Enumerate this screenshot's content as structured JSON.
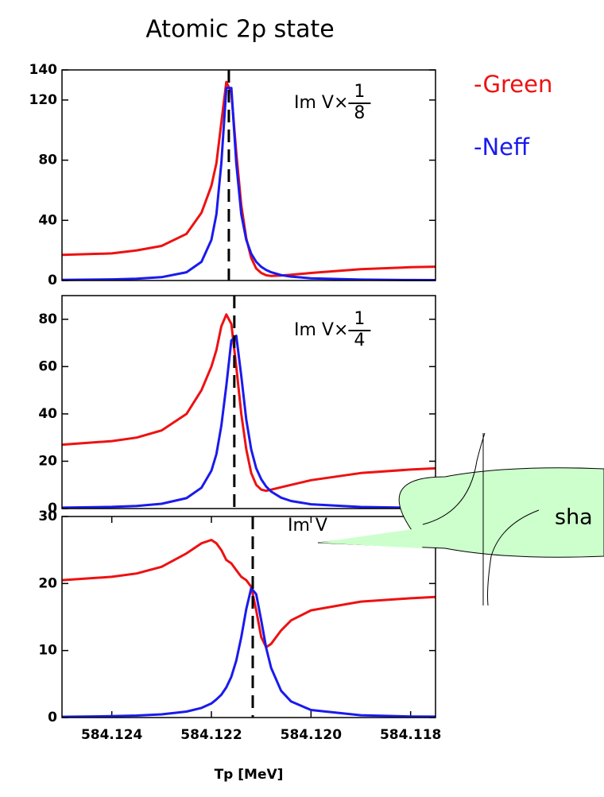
{
  "title": "Atomic 2p state",
  "callout": "sha",
  "chart_data": [
    {
      "type": "line",
      "annotation": "Im V×",
      "annotation_fraction": [
        "1",
        "8"
      ],
      "x": [
        584.125,
        584.124,
        584.1235,
        584.123,
        584.1225,
        584.1222,
        584.122,
        584.1219,
        584.1218,
        584.1217,
        584.1216,
        584.1215,
        584.1214,
        584.1213,
        584.1212,
        584.1211,
        584.121,
        584.1209,
        584.1208,
        584.1206,
        584.1204,
        584.12,
        584.119,
        584.118,
        584.1175
      ],
      "series": [
        {
          "name": "-Green",
          "color": "#ee1111",
          "values": [
            17,
            18,
            20,
            23,
            31,
            45,
            63,
            78,
            105,
            132,
            125,
            85,
            50,
            28,
            15,
            8,
            5,
            3.5,
            3,
            3.3,
            3.8,
            5,
            7.5,
            8.8,
            9.2
          ]
        },
        {
          "name": "-Neff",
          "color": "#1a1aee",
          "values": [
            0.37,
            0.75,
            1.2,
            2.2,
            5.5,
            12.4,
            27,
            44,
            78,
            128,
            128,
            78,
            44,
            27,
            17.8,
            12.4,
            9.1,
            7,
            5.5,
            3.6,
            2.6,
            1.5,
            0.59,
            0.31,
            0.24
          ]
        }
      ],
      "reference_x": 584.12165,
      "xlim": [
        584.125,
        584.1175
      ],
      "ylim": [
        0,
        140
      ],
      "yticks": [
        0,
        40,
        80,
        120,
        140
      ]
    },
    {
      "type": "line",
      "annotation": "Im V×",
      "annotation_fraction": [
        "1",
        "4"
      ],
      "x": [
        584.125,
        584.124,
        584.1235,
        584.123,
        584.1225,
        584.1222,
        584.122,
        584.1219,
        584.1218,
        584.1217,
        584.1216,
        584.1215,
        584.1214,
        584.1213,
        584.1212,
        584.1211,
        584.121,
        584.1209,
        584.1208,
        584.1206,
        584.1204,
        584.12,
        584.119,
        584.118,
        584.1175
      ],
      "series": [
        {
          "name": "-Green",
          "color": "#ee1111",
          "values": [
            27,
            28.5,
            30,
            33,
            40,
            50,
            60,
            67,
            77,
            82,
            78,
            60,
            40,
            25,
            15,
            10,
            8,
            7.5,
            8,
            9,
            10,
            12,
            15,
            16.5,
            17
          ]
        },
        {
          "name": "-Neff",
          "color": "#1a1aee",
          "values": [
            0.36,
            0.71,
            1.1,
            2,
            4.4,
            8.8,
            16,
            23,
            35,
            52,
            71,
            73,
            56,
            37.5,
            25,
            17,
            12.4,
            9.3,
            7.2,
            4.6,
            3.2,
            1.8,
            0.66,
            0.34,
            0.28
          ]
        }
      ],
      "reference_x": 584.12154,
      "xlim": [
        584.125,
        584.1175
      ],
      "ylim": [
        0,
        90
      ],
      "yticks": [
        0,
        20,
        40,
        60,
        80
      ]
    },
    {
      "type": "line",
      "annotation": "Im V",
      "x": [
        584.125,
        584.124,
        584.1235,
        584.123,
        584.1225,
        584.1222,
        584.122,
        584.1219,
        584.1218,
        584.1217,
        584.1216,
        584.1215,
        584.1214,
        584.1213,
        584.1212,
        584.1211,
        584.121,
        584.1209,
        584.1208,
        584.1206,
        584.1204,
        584.12,
        584.119,
        584.118,
        584.1175
      ],
      "series": [
        {
          "name": "-Green",
          "color": "#ee1111",
          "values": [
            20.5,
            21,
            21.5,
            22.5,
            24.5,
            26,
            26.5,
            26,
            25,
            23.5,
            23,
            22,
            21,
            20.5,
            19.5,
            16,
            12,
            10.5,
            11,
            13,
            14.5,
            16,
            17.3,
            17.8,
            18
          ]
        },
        {
          "name": "-Neff",
          "color": "#1a1aee",
          "values": [
            0.11,
            0.2,
            0.3,
            0.48,
            0.89,
            1.43,
            2.1,
            2.7,
            3.4,
            4.5,
            6.1,
            8.5,
            12,
            16.2,
            19.3,
            18.4,
            14.5,
            10.4,
            7.4,
            4,
            2.4,
            1.13,
            0.34,
            0.16,
            0.13
          ]
        }
      ],
      "reference_x": 584.12117,
      "xlim": [
        584.125,
        584.1175
      ],
      "ylim": [
        0,
        30
      ],
      "yticks": [
        0,
        10,
        20,
        30
      ],
      "xticks": [
        584.124,
        584.122,
        {
          "value": 584.12,
          "label": "584.120"
        },
        584.118
      ],
      "xlabel": "Tp [MeV]"
    }
  ]
}
